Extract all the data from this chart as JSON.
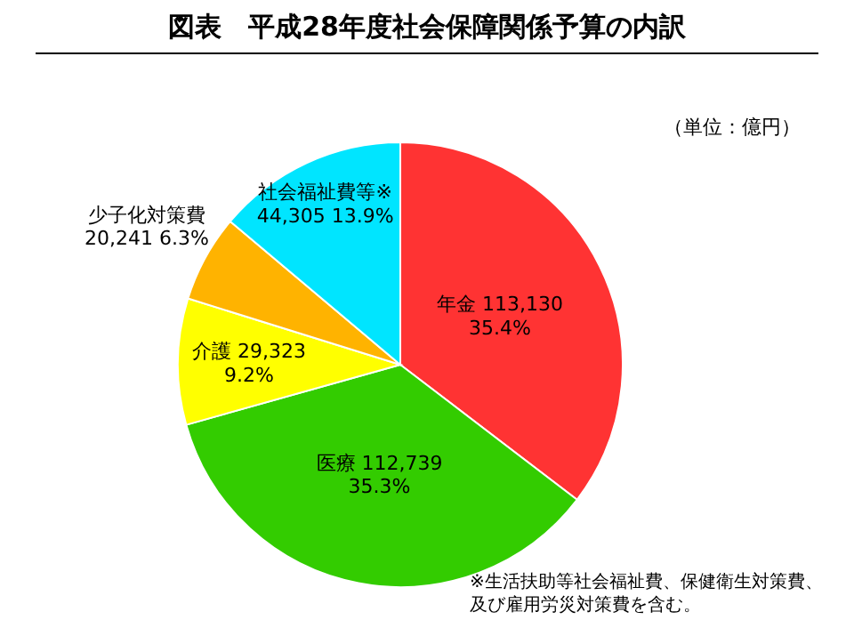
{
  "chart_data": {
    "type": "pie",
    "title": "図表　平成28年度社会保障関係予算の内訳",
    "categories": [
      "年金",
      "医療",
      "介護",
      "少子化対策費",
      "社会福祉費等※"
    ],
    "values": [
      113130,
      112739,
      29323,
      20241,
      44305
    ],
    "value_labels": [
      "113,130\n35.4%",
      "112,739\n35.3%",
      "29,323\n9.2%",
      "20,241  6.3%",
      "44,305  13.9%"
    ],
    "colors": [
      "#ff3333",
      "#33cc00",
      "#ffff00",
      "#ffb300",
      "#00e5ff"
    ],
    "annotations": [
      "（単位：億円）",
      "※生活扶助等社会福祉費、保健衛生対策費、",
      "及び雇用労災対策費を含む。"
    ]
  }
}
